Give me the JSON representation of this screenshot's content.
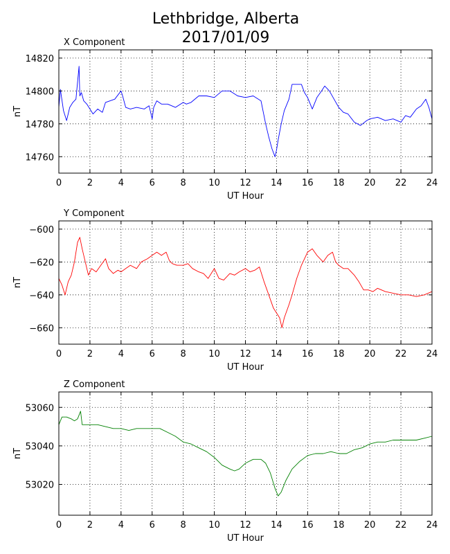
{
  "figure": {
    "title_line1": "Lethbridge, Alberta",
    "title_line2": "2017/01/09"
  },
  "chart_data": [
    {
      "type": "line",
      "title": "X Component",
      "xlabel": "UT Hour",
      "ylabel": "nT",
      "xlim": [
        0,
        24
      ],
      "ylim": [
        14750,
        14825
      ],
      "x_ticks": [
        0,
        2,
        4,
        6,
        8,
        10,
        12,
        14,
        16,
        18,
        20,
        22,
        24
      ],
      "y_ticks": [
        14760,
        14780,
        14800,
        14820
      ],
      "grid": true,
      "color": "#0000ff",
      "series": [
        {
          "x": [
            0,
            0.1,
            0.3,
            0.5,
            0.7,
            0.9,
            1.1,
            1.3,
            1.35,
            1.45,
            1.6,
            1.8,
            2.0,
            2.2,
            2.5,
            2.8,
            3.0,
            3.3,
            3.6,
            4.0,
            4.1,
            4.3,
            4.6,
            5.0,
            5.5,
            5.8,
            6.0,
            6.1,
            6.3,
            6.6,
            7.0,
            7.5,
            8.0,
            8.2,
            8.5,
            9.0,
            9.5,
            10.0,
            10.5,
            11.0,
            11.5,
            12.0,
            12.5,
            13.0,
            13.3,
            13.5,
            13.7,
            13.9,
            14.0,
            14.1,
            14.3,
            14.5,
            14.8,
            15.0,
            15.3,
            15.6,
            15.8,
            16.0,
            16.3,
            16.6,
            16.9,
            17.1,
            17.4,
            17.7,
            18.0,
            18.3,
            18.6,
            19.0,
            19.4,
            19.8,
            20.0,
            20.5,
            21.0,
            21.5,
            22.0,
            22.3,
            22.6,
            23.0,
            23.3,
            23.6,
            23.8,
            24.0
          ],
          "y": [
            14790,
            14801,
            14788,
            14782,
            14790,
            14793,
            14795,
            14815,
            14797,
            14799,
            14794,
            14792,
            14789,
            14786,
            14789,
            14787,
            14793,
            14794,
            14795,
            14800,
            14797,
            14790,
            14789,
            14790,
            14789,
            14791,
            14783,
            14790,
            14794,
            14792,
            14792,
            14790,
            14793,
            14792,
            14793,
            14797,
            14797,
            14796,
            14800,
            14800,
            14797,
            14796,
            14797,
            14794,
            14780,
            14772,
            14765,
            14760,
            14764,
            14770,
            14780,
            14788,
            14795,
            14804,
            14804,
            14804,
            14799,
            14796,
            14789,
            14796,
            14800,
            14803,
            14800,
            14795,
            14790,
            14787,
            14786,
            14781,
            14779,
            14782,
            14783,
            14784,
            14782,
            14783,
            14781,
            14785,
            14784,
            14789,
            14791,
            14795,
            14790,
            14783
          ]
        }
      ]
    },
    {
      "type": "line",
      "title": "Y Component",
      "xlabel": "UT Hour",
      "ylabel": "nT",
      "xlim": [
        0,
        24
      ],
      "ylim": [
        -670,
        -595
      ],
      "x_ticks": [
        0,
        2,
        4,
        6,
        8,
        10,
        12,
        14,
        16,
        18,
        20,
        22,
        24
      ],
      "y_ticks": [
        -600,
        -620,
        -640,
        -660
      ],
      "grid": true,
      "color": "#ff0000",
      "series": [
        {
          "x": [
            0,
            0.2,
            0.4,
            0.6,
            0.8,
            1.0,
            1.2,
            1.35,
            1.5,
            1.7,
            1.9,
            2.1,
            2.4,
            2.7,
            3.0,
            3.2,
            3.5,
            3.8,
            4.0,
            4.3,
            4.6,
            5.0,
            5.3,
            5.7,
            6.0,
            6.3,
            6.6,
            6.9,
            7.1,
            7.3,
            7.6,
            8.0,
            8.3,
            8.6,
            9.0,
            9.3,
            9.6,
            10.0,
            10.3,
            10.6,
            11.0,
            11.3,
            11.6,
            12.0,
            12.3,
            12.6,
            12.9,
            13.2,
            13.5,
            13.8,
            14.0,
            14.2,
            14.35,
            14.5,
            14.8,
            15.0,
            15.3,
            15.6,
            16.0,
            16.3,
            16.6,
            17.0,
            17.3,
            17.6,
            17.8,
            18.0,
            18.3,
            18.6,
            19.0,
            19.3,
            19.6,
            19.9,
            20.2,
            20.5,
            21.0,
            21.5,
            22.0,
            22.5,
            23.0,
            23.5,
            24.0
          ],
          "y": [
            -630,
            -634,
            -640,
            -632,
            -628,
            -620,
            -608,
            -605,
            -612,
            -620,
            -628,
            -624,
            -626,
            -622,
            -618,
            -624,
            -627,
            -625,
            -626,
            -624,
            -622,
            -624,
            -620,
            -618,
            -616,
            -614,
            -616,
            -614,
            -619,
            -621,
            -622,
            -622,
            -621,
            -624,
            -626,
            -627,
            -630,
            -624,
            -630,
            -631,
            -627,
            -628,
            -626,
            -624,
            -626,
            -625,
            -623,
            -632,
            -640,
            -648,
            -651,
            -654,
            -660,
            -654,
            -646,
            -640,
            -630,
            -622,
            -614,
            -612,
            -616,
            -620,
            -616,
            -614,
            -620,
            -622,
            -624,
            -624,
            -628,
            -632,
            -637,
            -637,
            -638,
            -636,
            -638,
            -639,
            -640,
            -640,
            -641,
            -640,
            -638
          ]
        }
      ]
    },
    {
      "type": "line",
      "title": "Z Component",
      "xlabel": "UT Hour",
      "ylabel": "nT",
      "xlim": [
        0,
        24
      ],
      "ylim": [
        53004,
        53068
      ],
      "x_ticks": [
        0,
        2,
        4,
        6,
        8,
        10,
        12,
        14,
        16,
        18,
        20,
        22,
        24
      ],
      "y_ticks": [
        53020,
        53040,
        53060
      ],
      "grid": true,
      "color": "#008000",
      "series": [
        {
          "x": [
            0,
            0.2,
            0.5,
            0.8,
            1.0,
            1.2,
            1.4,
            1.5,
            1.7,
            2.0,
            2.5,
            3.0,
            3.5,
            4.0,
            4.5,
            5.0,
            5.5,
            6.0,
            6.5,
            7.0,
            7.5,
            8.0,
            8.5,
            9.0,
            9.5,
            10.0,
            10.5,
            11.0,
            11.3,
            11.6,
            12.0,
            12.5,
            13.0,
            13.3,
            13.6,
            13.9,
            14.1,
            14.3,
            14.6,
            15.0,
            15.5,
            16.0,
            16.5,
            17.0,
            17.5,
            18.0,
            18.5,
            19.0,
            19.5,
            20.0,
            20.5,
            21.0,
            21.5,
            22.0,
            22.5,
            23.0,
            23.5,
            24.0
          ],
          "y": [
            53051,
            53055,
            53055,
            53054,
            53053,
            53054,
            53058,
            53051,
            53051,
            53051,
            53051,
            53050,
            53049,
            53049,
            53048,
            53049,
            53049,
            53049,
            53049,
            53047,
            53045,
            53042,
            53041,
            53039,
            53037,
            53034,
            53030,
            53028,
            53027,
            53028,
            53031,
            53033,
            53033,
            53031,
            53026,
            53018,
            53014,
            53016,
            53022,
            53028,
            53032,
            53035,
            53036,
            53036,
            53037,
            53036,
            53036,
            53038,
            53039,
            53041,
            53042,
            53042,
            53043,
            53043,
            53043,
            53043,
            53044,
            53045
          ]
        }
      ]
    }
  ]
}
